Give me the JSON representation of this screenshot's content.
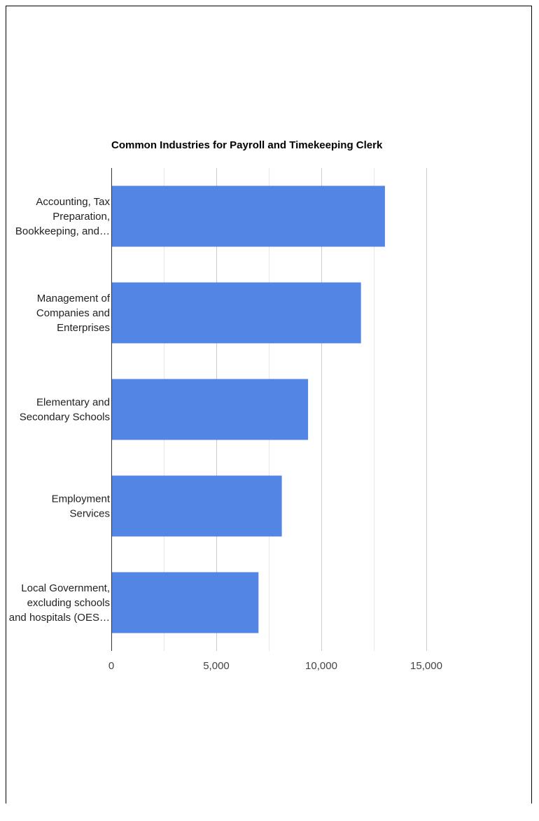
{
  "chart_data": {
    "type": "bar",
    "orientation": "horizontal",
    "title": "Common Industries for Payroll and Timekeeping Clerk",
    "categories": [
      [
        "Accounting, Tax",
        "Preparation,",
        "Bookkeeping, and…"
      ],
      [
        "Management of",
        "Companies and",
        "Enterprises"
      ],
      [
        "Elementary and",
        "Secondary Schools"
      ],
      [
        "Employment",
        "Services"
      ],
      [
        "Local Government,",
        "excluding schools",
        "and hospitals (OES…"
      ]
    ],
    "values": [
      13030,
      11890,
      9370,
      8120,
      7010
    ],
    "xlim": [
      0,
      15000
    ],
    "xticks": [
      0,
      5000,
      10000,
      15000
    ],
    "xtick_labels": [
      "0",
      "5,000",
      "10,000",
      "15,000"
    ],
    "bar_color": "#5385e4",
    "grid": true,
    "xlabel": "",
    "ylabel": ""
  }
}
